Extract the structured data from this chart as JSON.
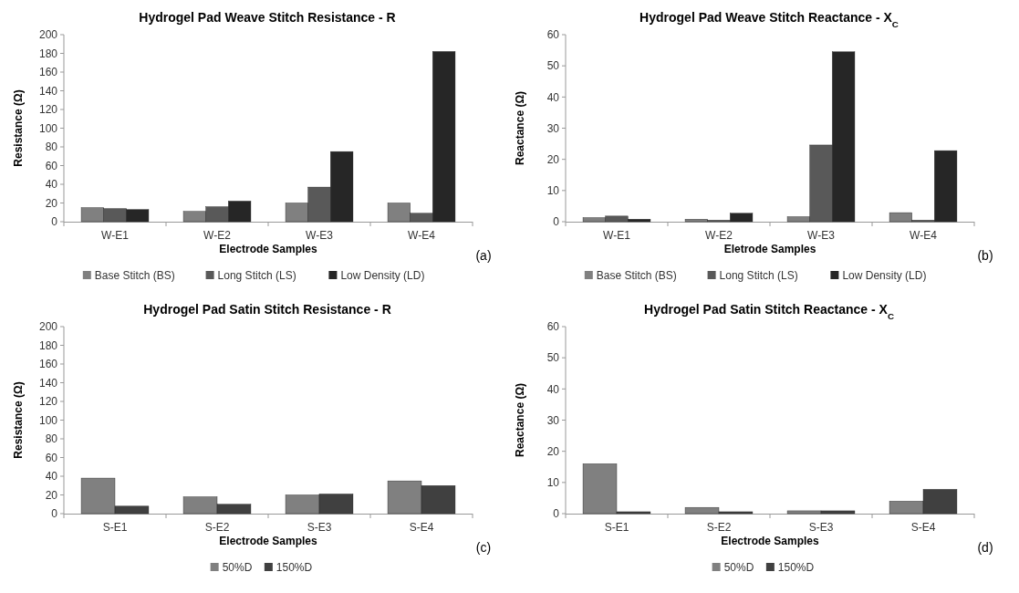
{
  "chart_data": [
    {
      "type": "bar",
      "title": "Hydrogel Pad Weave Stitch Resistance  - R",
      "xlabel": "Electrode Samples",
      "ylabel": "Resistance (Ω)",
      "categories": [
        "W-E1",
        "W-E2",
        "W-E3",
        "W-E4"
      ],
      "ylim": [
        0,
        200
      ],
      "yticks": [
        0,
        20,
        40,
        60,
        80,
        100,
        120,
        140,
        160,
        180,
        200
      ],
      "legend": "bottom",
      "annotations": [
        "(a)"
      ],
      "series": [
        {
          "name": "Base Stitch (BS)",
          "color": "#808080",
          "values": [
            15,
            11,
            20,
            20
          ]
        },
        {
          "name": "Long Stitch (LS)",
          "color": "#595959",
          "values": [
            14,
            16,
            37,
            9
          ]
        },
        {
          "name": "Low Density (LD)",
          "color": "#262626",
          "values": [
            13,
            22,
            75,
            182
          ]
        }
      ]
    },
    {
      "type": "bar",
      "title": "Hydrogel Pad Weave Stitch Reactance - X$_{C}$",
      "xlabel": "Eletrode Samples",
      "ylabel": "Reactance (Ω)",
      "categories": [
        "W-E1",
        "W-E2",
        "W-E3",
        "W-E4"
      ],
      "ylim": [
        0,
        60
      ],
      "yticks": [
        0,
        10,
        20,
        30,
        40,
        50,
        60
      ],
      "legend": "bottom",
      "annotations": [
        "(b)"
      ],
      "series": [
        {
          "name": "Base Stitch (BS)",
          "color": "#808080",
          "values": [
            1.3,
            0.8,
            1.6,
            2.9
          ]
        },
        {
          "name": "Long Stitch (LS)",
          "color": "#595959",
          "values": [
            1.8,
            0.5,
            24.6,
            0.5
          ]
        },
        {
          "name": "Low Density (LD)",
          "color": "#262626",
          "values": [
            0.8,
            2.7,
            54.5,
            22.8
          ]
        }
      ]
    },
    {
      "type": "bar",
      "title": "Hydrogel Pad Satin Stitch Resistance - R",
      "xlabel": "Electrode Samples",
      "ylabel": "Resistance (Ω)",
      "categories": [
        "S-E1",
        "S-E2",
        "S-E3",
        "S-E4"
      ],
      "ylim": [
        0,
        200
      ],
      "yticks": [
        0,
        20,
        40,
        60,
        80,
        100,
        120,
        140,
        160,
        180,
        200
      ],
      "legend": "bottom",
      "annotations": [
        "(c)"
      ],
      "series": [
        {
          "name": "50%D",
          "color": "#808080",
          "values": [
            38,
            18,
            20,
            35
          ]
        },
        {
          "name": "150%D",
          "color": "#404040",
          "values": [
            8,
            10,
            21,
            30
          ]
        }
      ]
    },
    {
      "type": "bar",
      "title": "Hydrogel Pad Satin Stitch Reactance - X$_{C}$",
      "xlabel": "Electrode Samples",
      "ylabel": "Reactance (Ω)",
      "categories": [
        "S-E1",
        "S-E2",
        "S-E3",
        "S-E4"
      ],
      "ylim": [
        0,
        60
      ],
      "yticks": [
        0,
        10,
        20,
        30,
        40,
        50,
        60
      ],
      "legend": "bottom",
      "annotations": [
        "(d)"
      ],
      "series": [
        {
          "name": "50%D",
          "color": "#808080",
          "values": [
            16,
            2,
            0.9,
            4
          ]
        },
        {
          "name": "150%D",
          "color": "#404040",
          "values": [
            0.6,
            0.6,
            0.9,
            7.8
          ]
        }
      ]
    }
  ]
}
